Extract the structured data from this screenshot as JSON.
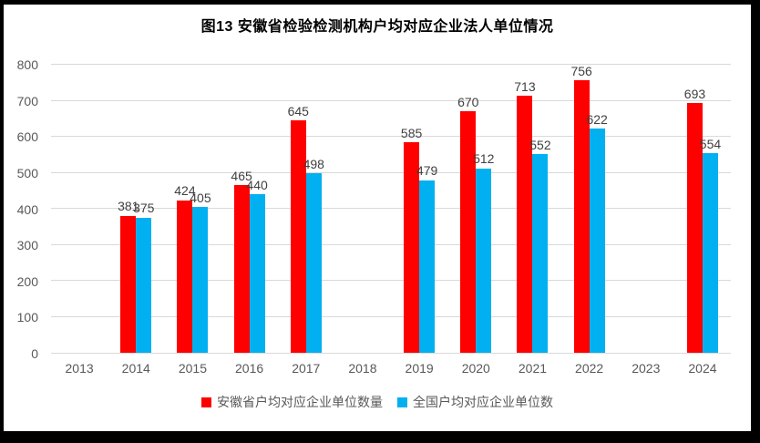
{
  "chart_data": {
    "type": "bar",
    "title": "图13 安徽省检验检测机构户均对应企业法人单位情况",
    "categories": [
      "2013",
      "2014",
      "2015",
      "2016",
      "2017",
      "2018",
      "2019",
      "2020",
      "2021",
      "2022",
      "2023",
      "2024"
    ],
    "series": [
      {
        "name": "安徽省户均对应企业单位数量",
        "color": "#FF0000",
        "values": [
          null,
          381,
          424,
          465,
          645,
          null,
          585,
          670,
          713,
          756,
          null,
          693
        ]
      },
      {
        "name": "全国户均对应企业单位数",
        "color": "#00B0F0",
        "values": [
          null,
          375,
          405,
          440,
          498,
          null,
          479,
          512,
          552,
          622,
          null,
          554
        ]
      }
    ],
    "ylim": [
      0,
      800
    ],
    "yticks": [
      0,
      100,
      200,
      300,
      400,
      500,
      600,
      700,
      800
    ],
    "grid": true,
    "legend_position": "bottom",
    "colors": {
      "frame": "#000000",
      "background": "#FFFFFF",
      "gridline": "#D9D9D9",
      "axis_tick_text": "#595959",
      "bar_label_text": "#404040",
      "title_text": "#000000"
    }
  }
}
